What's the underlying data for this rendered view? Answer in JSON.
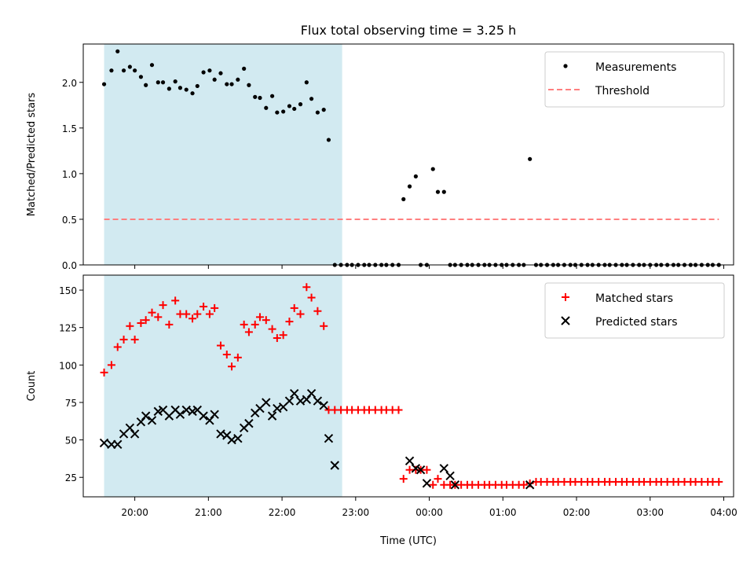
{
  "chart_data": [
    {
      "type": "scatter",
      "title": "Flux total observing time = 3.25 h",
      "xlabel": "",
      "ylabel": "Matched/Predicted stars",
      "ylim": [
        0,
        2.42
      ],
      "yticks": [
        0.0,
        0.5,
        1.0,
        1.5,
        2.0
      ],
      "ytick_labels": [
        "0.0",
        "0.5",
        "1.0",
        "1.5",
        "2.0"
      ],
      "legend_position": "top-right",
      "shaded_span": {
        "from": "19:35",
        "to": "22:49",
        "color": "#add8e6"
      },
      "series": [
        {
          "name": "Measurements",
          "kind": "points",
          "color": "#000000",
          "x": [
            "19:35",
            "19:41",
            "19:46",
            "19:51",
            "19:56",
            "20:00",
            "20:05",
            "20:09",
            "20:14",
            "20:19",
            "20:23",
            "20:28",
            "20:33",
            "20:37",
            "20:42",
            "20:47",
            "20:51",
            "20:56",
            "21:01",
            "21:05",
            "21:10",
            "21:15",
            "21:19",
            "21:24",
            "21:29",
            "21:33",
            "21:38",
            "21:42",
            "21:47",
            "21:52",
            "21:56",
            "22:01",
            "22:06",
            "22:10",
            "22:15",
            "22:20",
            "22:24",
            "22:29",
            "22:34",
            "22:38",
            "22:43",
            "22:48",
            "22:53",
            "22:57",
            "23:02",
            "23:07",
            "23:11",
            "23:16",
            "23:21",
            "23:25",
            "23:30",
            "23:35",
            "23:39",
            "23:44",
            "23:49",
            "23:53",
            "23:58",
            "00:03",
            "00:07",
            "00:12",
            "00:17",
            "00:21",
            "00:26",
            "00:31",
            "00:35",
            "00:40",
            "00:45",
            "00:49",
            "00:54",
            "00:59",
            "01:03",
            "01:08",
            "01:13",
            "01:17",
            "01:22",
            "01:27",
            "01:31",
            "01:36",
            "01:41",
            "01:45",
            "01:50",
            "01:55",
            "01:59",
            "02:04",
            "02:09",
            "02:13",
            "02:18",
            "02:23",
            "02:27",
            "02:32",
            "02:37",
            "02:41",
            "02:46",
            "02:51",
            "02:55",
            "03:00",
            "03:05",
            "03:09",
            "03:14",
            "03:19",
            "03:23",
            "03:28",
            "03:33",
            "03:37",
            "03:42",
            "03:47",
            "03:51",
            "03:56"
          ],
          "y": [
            1.98,
            2.13,
            2.34,
            2.13,
            2.17,
            2.13,
            2.06,
            1.97,
            2.19,
            2.0,
            2.0,
            1.93,
            2.01,
            1.94,
            1.92,
            1.88,
            1.96,
            2.11,
            2.13,
            2.03,
            2.1,
            1.98,
            1.98,
            2.03,
            2.15,
            1.97,
            1.84,
            1.83,
            1.72,
            1.85,
            1.67,
            1.68,
            1.74,
            1.71,
            1.76,
            2.0,
            1.82,
            1.67,
            1.7,
            1.37,
            0,
            0,
            0,
            0,
            0,
            0,
            0,
            0,
            0,
            0,
            0,
            0,
            0.72,
            0.86,
            0.97,
            0,
            0,
            1.05,
            0.8,
            0.8,
            0,
            0,
            0,
            0,
            0,
            0,
            0,
            0,
            0,
            0,
            0,
            0,
            0,
            0,
            1.16,
            0,
            0,
            0,
            0,
            0,
            0,
            0,
            0,
            0,
            0,
            0,
            0,
            0,
            0,
            0,
            0,
            0,
            0,
            0,
            0,
            0,
            0,
            0,
            0,
            0,
            0,
            0,
            0,
            0,
            0,
            0,
            0,
            0
          ]
        },
        {
          "name": "Threshold",
          "kind": "dashed-line",
          "color": "#ff7f7f",
          "x": [
            "19:35",
            "03:56"
          ],
          "y": [
            0.5,
            0.5
          ]
        }
      ]
    },
    {
      "type": "scatter",
      "title": "",
      "xlabel": "Time (UTC)",
      "ylabel": "Count",
      "ylim": [
        12,
        160
      ],
      "yticks": [
        25,
        50,
        75,
        100,
        125,
        150
      ],
      "ytick_labels": [
        "25",
        "50",
        "75",
        "100",
        "125",
        "150"
      ],
      "xlim": [
        "19:18",
        "04:08"
      ],
      "xticks": [
        "20:00",
        "21:00",
        "22:00",
        "23:00",
        "00:00",
        "01:00",
        "02:00",
        "03:00",
        "04:00"
      ],
      "xtick_labels": [
        "20:00",
        "21:00",
        "22:00",
        "23:00",
        "00:00",
        "01:00",
        "02:00",
        "03:00",
        "04:00"
      ],
      "legend_position": "top-right",
      "shaded_span": {
        "from": "19:35",
        "to": "22:49",
        "color": "#add8e6"
      },
      "series": [
        {
          "name": "Matched stars",
          "kind": "plus",
          "color": "#ff0000",
          "x": [
            "19:35",
            "19:41",
            "19:46",
            "19:51",
            "19:56",
            "20:00",
            "20:05",
            "20:09",
            "20:14",
            "20:19",
            "20:23",
            "20:28",
            "20:33",
            "20:37",
            "20:42",
            "20:47",
            "20:51",
            "20:56",
            "21:01",
            "21:05",
            "21:10",
            "21:15",
            "21:19",
            "21:24",
            "21:29",
            "21:33",
            "21:38",
            "21:42",
            "21:47",
            "21:52",
            "21:56",
            "22:01",
            "22:06",
            "22:10",
            "22:15",
            "22:20",
            "22:24",
            "22:29",
            "22:34",
            "22:38",
            "22:43",
            "22:48",
            "22:53",
            "22:57",
            "23:02",
            "23:07",
            "23:11",
            "23:16",
            "23:21",
            "23:25",
            "23:30",
            "23:35",
            "23:39",
            "23:44",
            "23:49",
            "23:53",
            "23:58",
            "00:03",
            "00:07",
            "00:12",
            "00:17",
            "00:21",
            "00:26",
            "00:31",
            "00:35",
            "00:40",
            "00:45",
            "00:49",
            "00:54",
            "00:59",
            "01:03",
            "01:08",
            "01:13",
            "01:17",
            "01:22",
            "01:27",
            "01:31",
            "01:36",
            "01:41",
            "01:45",
            "01:50",
            "01:55",
            "01:59",
            "02:04",
            "02:09",
            "02:13",
            "02:18",
            "02:23",
            "02:27",
            "02:32",
            "02:37",
            "02:41",
            "02:46",
            "02:51",
            "02:55",
            "03:00",
            "03:05",
            "03:09",
            "03:14",
            "03:19",
            "03:23",
            "03:28",
            "03:33",
            "03:37",
            "03:42",
            "03:47",
            "03:51",
            "03:56"
          ],
          "y": [
            95,
            100,
            112,
            117,
            126,
            117,
            128,
            130,
            135,
            132,
            140,
            127,
            143,
            134,
            134,
            131,
            134,
            139,
            134,
            138,
            113,
            107,
            99,
            105,
            127,
            122,
            127,
            132,
            130,
            124,
            118,
            120,
            129,
            138,
            134,
            152,
            145,
            136,
            126,
            70,
            70,
            70,
            70,
            70,
            70,
            70,
            70,
            70,
            70,
            70,
            70,
            70,
            24,
            30,
            30,
            30,
            30,
            20,
            24,
            20,
            20,
            20,
            20,
            20,
            20,
            20,
            20,
            20,
            20,
            20,
            20,
            20,
            20,
            20,
            21,
            22,
            22,
            22,
            22,
            22,
            22,
            22,
            22,
            22,
            22,
            22,
            22,
            22,
            22,
            22,
            22,
            22,
            22,
            22,
            22,
            22,
            22,
            22,
            22,
            22,
            22,
            22,
            22,
            22,
            22,
            22,
            22,
            22
          ]
        },
        {
          "name": "Predicted stars",
          "kind": "x",
          "color": "#000000",
          "x": [
            "19:35",
            "19:41",
            "19:46",
            "19:51",
            "19:56",
            "20:00",
            "20:05",
            "20:09",
            "20:14",
            "20:19",
            "20:23",
            "20:28",
            "20:33",
            "20:37",
            "20:42",
            "20:47",
            "20:51",
            "20:56",
            "21:01",
            "21:05",
            "21:10",
            "21:15",
            "21:19",
            "21:24",
            "21:29",
            "21:33",
            "21:38",
            "21:42",
            "21:47",
            "21:52",
            "21:56",
            "22:01",
            "22:06",
            "22:10",
            "22:15",
            "22:20",
            "22:24",
            "22:29",
            "22:34",
            "22:38",
            "22:43",
            "23:44",
            "23:49",
            "23:53",
            "23:58",
            "00:12",
            "00:17",
            "00:21",
            "01:22"
          ],
          "y": [
            48,
            47,
            47,
            54,
            58,
            54,
            62,
            66,
            63,
            69,
            70,
            66,
            70,
            67,
            70,
            69,
            70,
            66,
            63,
            67,
            54,
            53,
            50,
            51,
            58,
            61,
            68,
            71,
            75,
            66,
            71,
            72,
            76,
            81,
            76,
            77,
            81,
            76,
            73,
            51,
            33,
            36,
            31,
            30,
            21,
            31,
            26,
            20,
            20
          ]
        }
      ]
    }
  ]
}
